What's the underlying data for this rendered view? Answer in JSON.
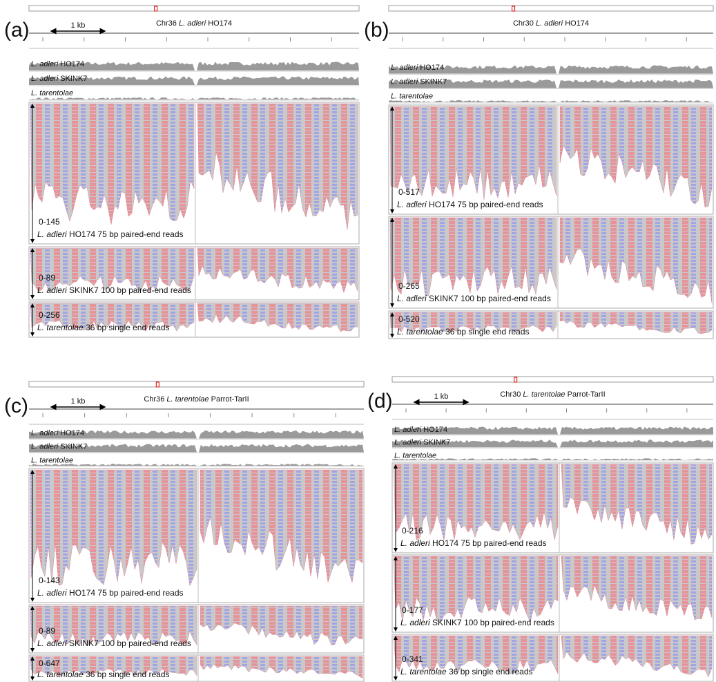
{
  "panels": [
    {
      "label": "(a)",
      "title": {
        "chromosome": "Chr36",
        "species": "L. adleri",
        "strain": "HO174"
      },
      "scale": "1 kb",
      "coverage_tracks": [
        {
          "species": "L. adleri",
          "strain": "HO174"
        },
        {
          "species": "L. adleri",
          "strain": "SKINK7"
        },
        {
          "species": "L. tarentolae"
        }
      ],
      "read_tracks": [
        {
          "range": "0-145",
          "species": "L. adleri",
          "description": "HO174 75 bp paired-end reads"
        },
        {
          "range": "0-89",
          "species": "L. adleri",
          "description": "SKINK7 100 bp paired-end reads"
        },
        {
          "range": "0-256",
          "species": "L. tarentolae",
          "description": "36 bp single end reads"
        }
      ]
    },
    {
      "label": "(b)",
      "title": {
        "chromosome": "Chr30",
        "species": "L. adleri",
        "strain": "HO174"
      },
      "coverage_tracks": [
        {
          "species": "L. adleri",
          "strain": "HO174"
        },
        {
          "species": "L. adleri",
          "strain": "SKINK7"
        },
        {
          "species": "L. tarentolae"
        }
      ],
      "read_tracks": [
        {
          "range": "0-517",
          "species": "L. adleri",
          "description": "HO174 75 bp paired-end reads"
        },
        {
          "range": "0-265",
          "species": "L. adleri",
          "description": "SKINK7 100 bp paired-end reads"
        },
        {
          "range": "0-520",
          "species": "L. tarentolae",
          "description": "36 bp single end reads"
        }
      ]
    },
    {
      "label": "(c)",
      "title": {
        "chromosome": "Chr36",
        "species": "L. tarentolae",
        "strain": "Parrot-TarII"
      },
      "scale": "1 kb",
      "coverage_tracks": [
        {
          "species": "L. adleri",
          "strain": "HO174"
        },
        {
          "species": "L. adleri",
          "strain": "SKINK7"
        },
        {
          "species": "L. tarentolae"
        }
      ],
      "read_tracks": [
        {
          "range": "0-143",
          "species": "L. adleri",
          "description": "HO174 75 bp paired-end reads"
        },
        {
          "range": "0-89",
          "species": "L. adleri",
          "description": "SKINK7 100 bp paired-end reads"
        },
        {
          "range": "0-647",
          "species": "L. tarentolae",
          "description": "36 bp single end reads"
        }
      ]
    },
    {
      "label": "(d)",
      "title": {
        "chromosome": "Chr30",
        "species": "L. tarentolae",
        "strain": "Parrot-TarII"
      },
      "scale": "1 kb",
      "coverage_tracks": [
        {
          "species": "L. adleri",
          "strain": "HO174"
        },
        {
          "species": "L. adleri",
          "strain": "SKINK7"
        },
        {
          "species": "L. tarentolae"
        }
      ],
      "read_tracks": [
        {
          "range": "0-216",
          "species": "L. adleri",
          "description": "HO174 75 bp paired-end reads"
        },
        {
          "range": "0-177",
          "species": "L. adleri",
          "description": "SKINK7 100 bp paired-end reads"
        },
        {
          "range": "0-341",
          "species": "L. tarentolae",
          "description": "36 bp single end reads"
        }
      ]
    }
  ]
}
